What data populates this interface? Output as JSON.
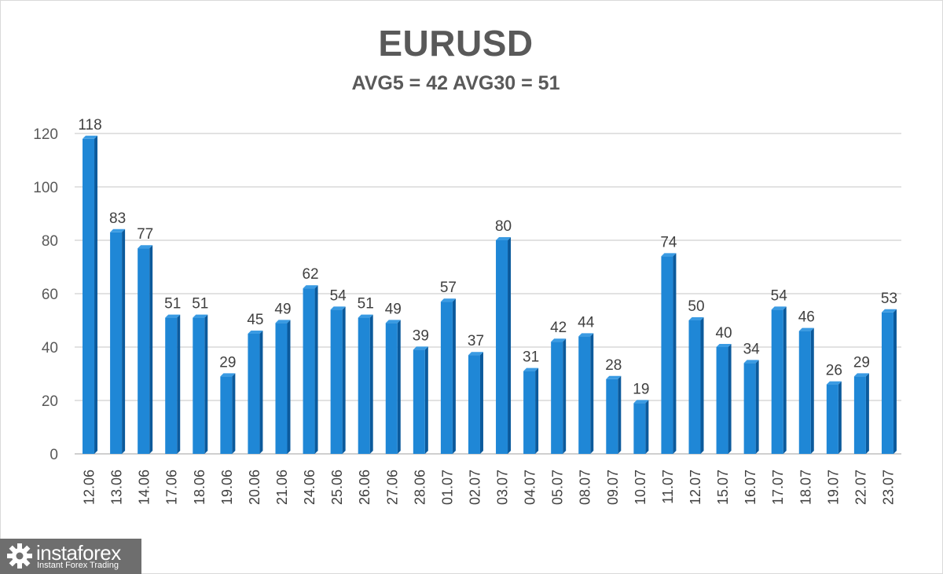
{
  "chart_data": {
    "type": "bar",
    "title": "EURUSD",
    "subtitle": "AVG5 = 42 AVG30 = 51",
    "categories": [
      "12.06",
      "13.06",
      "14.06",
      "17.06",
      "18.06",
      "19.06",
      "20.06",
      "21.06",
      "24.06",
      "25.06",
      "26.06",
      "27.06",
      "28.06",
      "01.07",
      "02.07",
      "03.07",
      "04.07",
      "05.07",
      "08.07",
      "09.07",
      "10.07",
      "11.07",
      "12.07",
      "15.07",
      "16.07",
      "17.07",
      "18.07",
      "19.07",
      "22.07",
      "23.07"
    ],
    "values": [
      118,
      83,
      77,
      51,
      51,
      29,
      45,
      49,
      62,
      54,
      51,
      49,
      39,
      57,
      37,
      80,
      31,
      42,
      44,
      28,
      19,
      74,
      50,
      40,
      34,
      54,
      46,
      26,
      29,
      53
    ],
    "ylim": [
      0,
      120
    ],
    "yticks": [
      0,
      20,
      40,
      60,
      80,
      100,
      120
    ],
    "grid": true,
    "data_labels": true,
    "bar_color": "#1f87d6",
    "bar_side_color": "#0b5a9c"
  },
  "logo": {
    "name": "instaforex",
    "tagline": "Instant Forex Trading"
  }
}
